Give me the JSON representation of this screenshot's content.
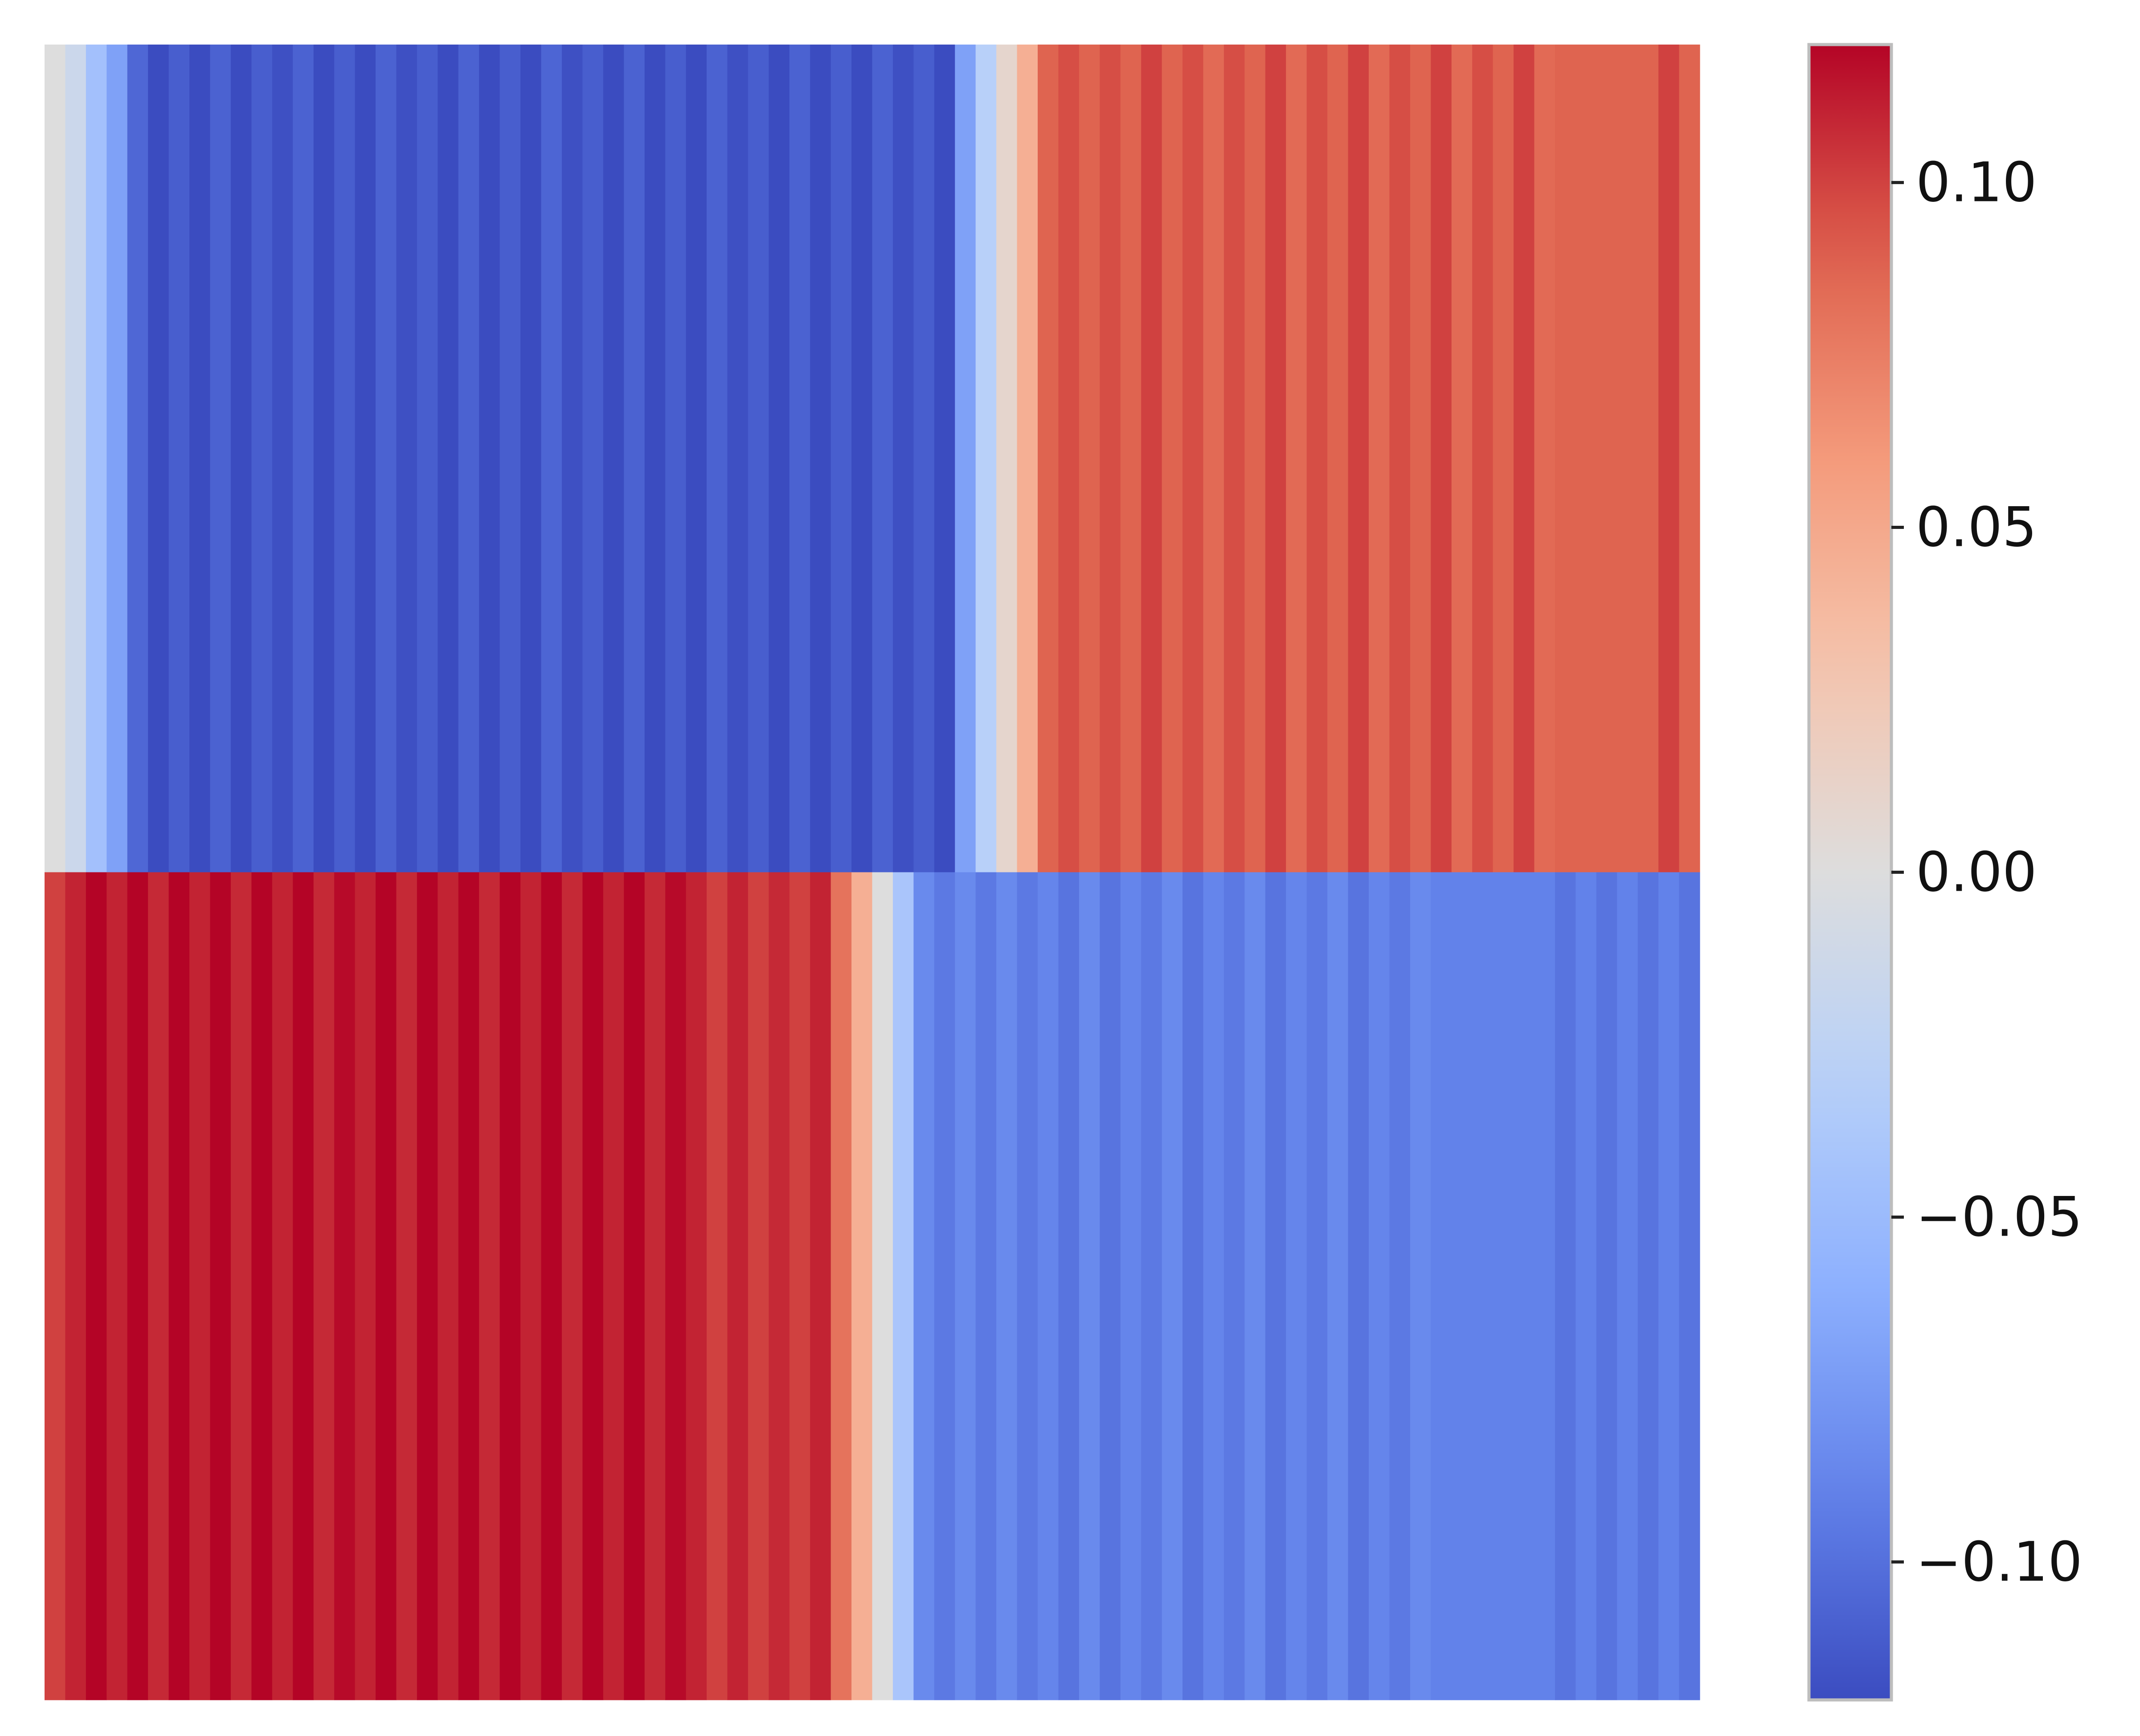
{
  "chart_data": {
    "type": "heatmap",
    "title": "",
    "xlabel": "",
    "ylabel": "",
    "rows": 2,
    "columns": 80,
    "values": [
      [
        0.0,
        -0.015,
        -0.045,
        -0.07,
        -0.105,
        -0.12,
        -0.11,
        -0.12,
        -0.108,
        -0.12,
        -0.11,
        -0.118,
        -0.108,
        -0.12,
        -0.11,
        -0.12,
        -0.108,
        -0.118,
        -0.11,
        -0.12,
        -0.108,
        -0.12,
        -0.11,
        -0.12,
        -0.106,
        -0.118,
        -0.11,
        -0.12,
        -0.108,
        -0.12,
        -0.11,
        -0.12,
        -0.108,
        -0.118,
        -0.11,
        -0.12,
        -0.108,
        -0.12,
        -0.11,
        -0.12,
        -0.108,
        -0.118,
        -0.11,
        -0.12,
        -0.07,
        -0.03,
        0.01,
        0.045,
        0.088,
        0.096,
        0.088,
        0.096,
        0.088,
        0.1,
        0.088,
        0.096,
        0.085,
        0.096,
        0.088,
        0.1,
        0.085,
        0.096,
        0.088,
        0.1,
        0.085,
        0.096,
        0.088,
        0.1,
        0.085,
        0.096,
        0.088,
        0.1,
        0.085,
        0.088,
        0.088,
        0.088,
        0.088,
        0.088,
        0.1,
        0.088
      ],
      [
        0.1,
        0.11,
        0.12,
        0.11,
        0.12,
        0.108,
        0.12,
        0.11,
        0.12,
        0.108,
        0.12,
        0.11,
        0.12,
        0.108,
        0.118,
        0.11,
        0.12,
        0.108,
        0.12,
        0.11,
        0.12,
        0.108,
        0.12,
        0.11,
        0.12,
        0.108,
        0.12,
        0.11,
        0.12,
        0.108,
        0.118,
        0.11,
        0.1,
        0.11,
        0.1,
        0.108,
        0.1,
        0.11,
        0.08,
        0.045,
        0.0,
        -0.04,
        -0.085,
        -0.095,
        -0.085,
        -0.095,
        -0.085,
        -0.095,
        -0.088,
        -0.098,
        -0.085,
        -0.098,
        -0.088,
        -0.095,
        -0.085,
        -0.098,
        -0.088,
        -0.095,
        -0.085,
        -0.098,
        -0.088,
        -0.095,
        -0.085,
        -0.098,
        -0.088,
        -0.095,
        -0.085,
        -0.09,
        -0.09,
        -0.09,
        -0.09,
        -0.09,
        -0.09,
        -0.098,
        -0.09,
        -0.098,
        -0.09,
        -0.098,
        -0.09,
        -0.098
      ]
    ],
    "colormap": "coolwarm",
    "vmin": -0.12,
    "vmax": 0.12,
    "colorbar": {
      "ticks": [
        0.1,
        0.05,
        0.0,
        -0.05,
        -0.1
      ],
      "tick_labels": [
        "0.10",
        "0.05",
        "0.00",
        "−0.05",
        "−0.10"
      ],
      "placement": "right"
    },
    "grid": false
  }
}
